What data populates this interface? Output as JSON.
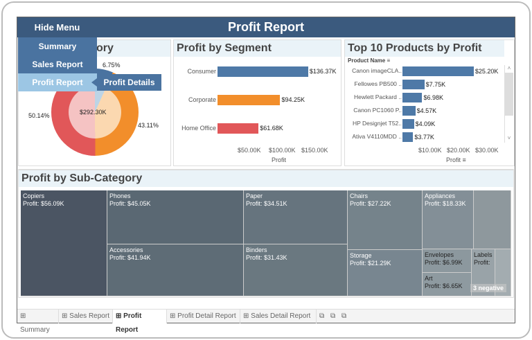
{
  "header": {
    "title": "Profit Report",
    "hide_menu": "Hide Menu"
  },
  "menu": {
    "items": [
      "Summary",
      "Sales Report",
      "Profit Report"
    ],
    "submenu": "Profit Details"
  },
  "category": {
    "title_partial": "ory",
    "total": "$292.30K",
    "slices": [
      {
        "pct": 6.75,
        "label": "6.75%",
        "color": "#4a73a0"
      },
      {
        "pct": 43.11,
        "label": "43.11%",
        "color": "#f28e2b"
      },
      {
        "pct": 50.14,
        "label": "50.14%",
        "color": "#e15759"
      }
    ]
  },
  "segment": {
    "title": "Profit by Segment",
    "axis_title": "Profit",
    "ticks": [
      "$50.00K",
      "$100.00K",
      "$150.00K"
    ],
    "rows": [
      {
        "name": "Consumer",
        "value": 136.37,
        "label": "$136.37K",
        "color": "#4e79a7"
      },
      {
        "name": "Corporate",
        "value": 94.25,
        "label": "$94.25K",
        "color": "#f28e2b"
      },
      {
        "name": "Home Office",
        "value": 61.68,
        "label": "$61.68K",
        "color": "#e15759"
      }
    ]
  },
  "top10": {
    "title": "Top 10 Products by Profit",
    "column_header": "Product Name",
    "axis_title": "Profit",
    "ticks": [
      "$10.00K",
      "$20.00K",
      "$30.00K"
    ],
    "rows": [
      {
        "name": "Canon imageCLA..",
        "value": 25.2,
        "label": "$25.20K"
      },
      {
        "name": "Fellowes PB500 ..",
        "value": 7.75,
        "label": "$7.75K"
      },
      {
        "name": "Hewlett Packard ..",
        "value": 6.98,
        "label": "$6.98K"
      },
      {
        "name": "Canon PC1060 P..",
        "value": 4.57,
        "label": "$4.57K"
      },
      {
        "name": "HP Designjet T52..",
        "value": 4.09,
        "label": "$4.09K"
      },
      {
        "name": "Ativa V4110MDD ..",
        "value": 3.77,
        "label": "$3.77K"
      }
    ]
  },
  "subcat": {
    "title": "Profit by Sub-Category",
    "negative_note": "3 negative",
    "cells": [
      {
        "name": "Copiers",
        "profit": "Profit: $56.09K"
      },
      {
        "name": "Phones",
        "profit": "Profit: $45.05K"
      },
      {
        "name": "Accessories",
        "profit": "Profit: $41.94K"
      },
      {
        "name": "Paper",
        "profit": "Profit: $34.51K"
      },
      {
        "name": "Binders",
        "profit": "Profit: $31.43K"
      },
      {
        "name": "Chairs",
        "profit": "Profit: $27.22K"
      },
      {
        "name": "Storage",
        "profit": "Profit: $21.29K"
      },
      {
        "name": "Appliances",
        "profit": "Profit: $18.33K"
      },
      {
        "name": "Envelopes",
        "profit": "Profit: $6.99K"
      },
      {
        "name": "Art",
        "profit": "Profit: $6.65K"
      },
      {
        "name": "Labels",
        "profit": "Profit:"
      }
    ]
  },
  "tabs": [
    {
      "label": "Summary",
      "active": false
    },
    {
      "label": "Sales Report",
      "active": false
    },
    {
      "label": "Profit Report",
      "active": true
    },
    {
      "label": "Profit Detail Report",
      "active": false
    },
    {
      "label": "Sales Detail Report",
      "active": false
    }
  ]
}
